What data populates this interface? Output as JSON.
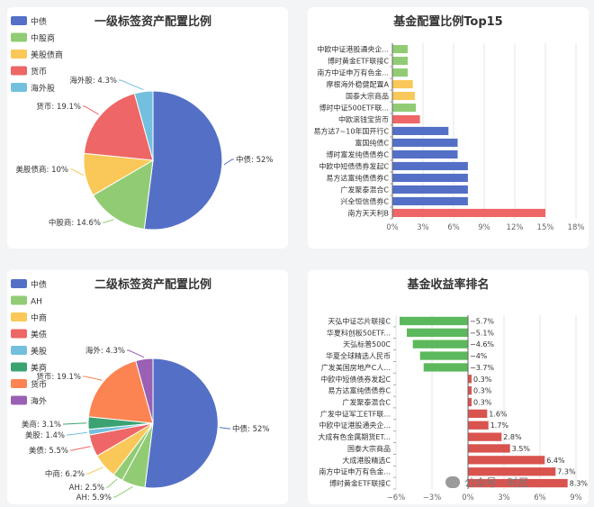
{
  "colors": {
    "blue": "#5470c6",
    "green": "#91cc75",
    "yellow": "#fac858",
    "red": "#ee6666",
    "cyan": "#73c0de",
    "teal": "#3ba272",
    "orange": "#fc8452",
    "purple": "#9a60b4",
    "bar_red": "#d9534f",
    "bar_green": "#5cb85c"
  },
  "watermark": {
    "text": "公众号 · 时尼",
    "icon": "wechat-icon"
  },
  "chart_data": [
    {
      "id": "c1",
      "type": "pie",
      "title": "一级标签资产配置比例",
      "legend_position": "top-left",
      "slices": [
        {
          "name": "中债",
          "value": 52,
          "label": "中债: 52%",
          "color_key": "blue"
        },
        {
          "name": "中股商",
          "value": 14.6,
          "label": "中股商: 14.6%",
          "color_key": "green"
        },
        {
          "name": "美股债商",
          "value": 10,
          "label": "美股债商: 10%",
          "color_key": "yellow"
        },
        {
          "name": "货币",
          "value": 19.1,
          "label": "货币: 19.1%",
          "color_key": "red"
        },
        {
          "name": "海外股",
          "value": 4.3,
          "label": "海外股: 4.3%",
          "color_key": "cyan"
        }
      ]
    },
    {
      "id": "c2",
      "type": "bar",
      "orientation": "horizontal",
      "title": "基金配置比例Top15",
      "xlim": [
        0,
        18
      ],
      "ticks": [
        "0%",
        "3%",
        "6%",
        "9%",
        "12%",
        "15%",
        "18%"
      ],
      "grid": true,
      "bars": [
        {
          "name": "中欧中证港股通央企...",
          "value": 1.5,
          "color_key": "green"
        },
        {
          "name": "博时黄金ETF联接C",
          "value": 1.5,
          "color_key": "green"
        },
        {
          "name": "南方中证申万有色金...",
          "value": 1.5,
          "color_key": "green"
        },
        {
          "name": "摩根海外稳健配置A",
          "value": 2.0,
          "color_key": "yellow"
        },
        {
          "name": "国泰大宗商品",
          "value": 2.2,
          "color_key": "yellow"
        },
        {
          "name": "博时中证500ETF联...",
          "value": 2.3,
          "color_key": "green"
        },
        {
          "name": "中欧滚钱宝货币",
          "value": 2.7,
          "color_key": "red"
        },
        {
          "name": "易方达7~10年国开行C",
          "value": 5.5,
          "color_key": "blue"
        },
        {
          "name": "富国纯债C",
          "value": 6.4,
          "color_key": "blue"
        },
        {
          "name": "博时富发纯债债券C",
          "value": 6.4,
          "color_key": "blue"
        },
        {
          "name": "中欧中短债债券发起C",
          "value": 7.4,
          "color_key": "blue"
        },
        {
          "name": "易方达富纯债债券C",
          "value": 7.4,
          "color_key": "blue"
        },
        {
          "name": "广发聚泰混合C",
          "value": 7.4,
          "color_key": "blue"
        },
        {
          "name": "兴全恒信债券C",
          "value": 7.4,
          "color_key": "blue"
        },
        {
          "name": "南方天天利B",
          "value": 15.0,
          "color_key": "red"
        }
      ]
    },
    {
      "id": "c3",
      "type": "pie",
      "title": "二级标签资产配置比例",
      "legend_position": "top-left",
      "legend": [
        {
          "name": "中债",
          "color_key": "blue"
        },
        {
          "name": "AH",
          "color_key": "green"
        },
        {
          "name": "中商",
          "color_key": "yellow"
        },
        {
          "name": "美债",
          "color_key": "red"
        },
        {
          "name": "美股",
          "color_key": "cyan"
        },
        {
          "name": "美商",
          "color_key": "teal"
        },
        {
          "name": "货币",
          "color_key": "orange"
        },
        {
          "name": "海外",
          "color_key": "purple"
        }
      ],
      "slices": [
        {
          "name": "中债",
          "value": 52,
          "label": "中债: 52%",
          "color_key": "blue"
        },
        {
          "name": "AH",
          "value": 5.9,
          "label": "AH: 5.9%",
          "color_key": "green"
        },
        {
          "name": "AH",
          "value": 2.5,
          "label": "AH: 2.5%",
          "color_key": "green"
        },
        {
          "name": "中商",
          "value": 6.2,
          "label": "中商: 6.2%",
          "color_key": "yellow"
        },
        {
          "name": "美债",
          "value": 5.5,
          "label": "美债: 5.5%",
          "color_key": "red"
        },
        {
          "name": "美股",
          "value": 1.4,
          "label": "美股: 1.4%",
          "color_key": "cyan"
        },
        {
          "name": "美商",
          "value": 3.1,
          "label": "美商: 3.1%",
          "color_key": "teal"
        },
        {
          "name": "货币",
          "value": 19.1,
          "label": "货币: 19.1%",
          "color_key": "orange"
        },
        {
          "name": "海外",
          "value": 4.3,
          "label": "海外: 4.3%",
          "color_key": "purple"
        }
      ]
    },
    {
      "id": "c4",
      "type": "bar",
      "orientation": "horizontal",
      "title": "基金收益率排名",
      "xlim": [
        -6,
        9
      ],
      "ticks": [
        "−6%",
        "−3%",
        "0%",
        "3%",
        "6%",
        "9%"
      ],
      "grid": true,
      "bars": [
        {
          "name": "天弘中证芯片联接C",
          "value": -5.7,
          "label": "−5.7%",
          "color_key": "bar_green"
        },
        {
          "name": "华夏科创板50ETF...",
          "value": -5.1,
          "label": "−5.1%",
          "color_key": "bar_green"
        },
        {
          "name": "天弘标普500C",
          "value": -4.6,
          "label": "−4.6%",
          "color_key": "bar_green"
        },
        {
          "name": "华夏全球精选人民币",
          "value": -4.0,
          "label": "−4%",
          "color_key": "bar_green"
        },
        {
          "name": "广发美国房地产C人...",
          "value": -3.7,
          "label": "−3.7%",
          "color_key": "bar_green"
        },
        {
          "name": "中欧中短债债券发起C",
          "value": 0.3,
          "label": "0.3%",
          "color_key": "bar_red"
        },
        {
          "name": "易方达富纯债债券C",
          "value": 0.3,
          "label": "0.3%",
          "color_key": "bar_red"
        },
        {
          "name": "广发聚泰混合C",
          "value": 0.3,
          "label": "0.3%",
          "color_key": "bar_red"
        },
        {
          "name": "广发中证军工ETF联...",
          "value": 1.6,
          "label": "1.6%",
          "color_key": "bar_red"
        },
        {
          "name": "中欧中证港股通央企...",
          "value": 1.7,
          "label": "1.7%",
          "color_key": "bar_red"
        },
        {
          "name": "大成有色金属期货ET...",
          "value": 2.8,
          "label": "2.8%",
          "color_key": "bar_red"
        },
        {
          "name": "国泰大宗商品",
          "value": 3.5,
          "label": "3.5%",
          "color_key": "bar_red"
        },
        {
          "name": "大成港股精选C",
          "value": 6.4,
          "label": "6.4%",
          "color_key": "bar_red"
        },
        {
          "name": "南方中证申万有色金...",
          "value": 7.3,
          "label": "7.3%",
          "color_key": "bar_red"
        },
        {
          "name": "博时黄金ETF联接C",
          "value": 8.3,
          "label": "8.3%",
          "color_key": "bar_red"
        }
      ]
    }
  ]
}
